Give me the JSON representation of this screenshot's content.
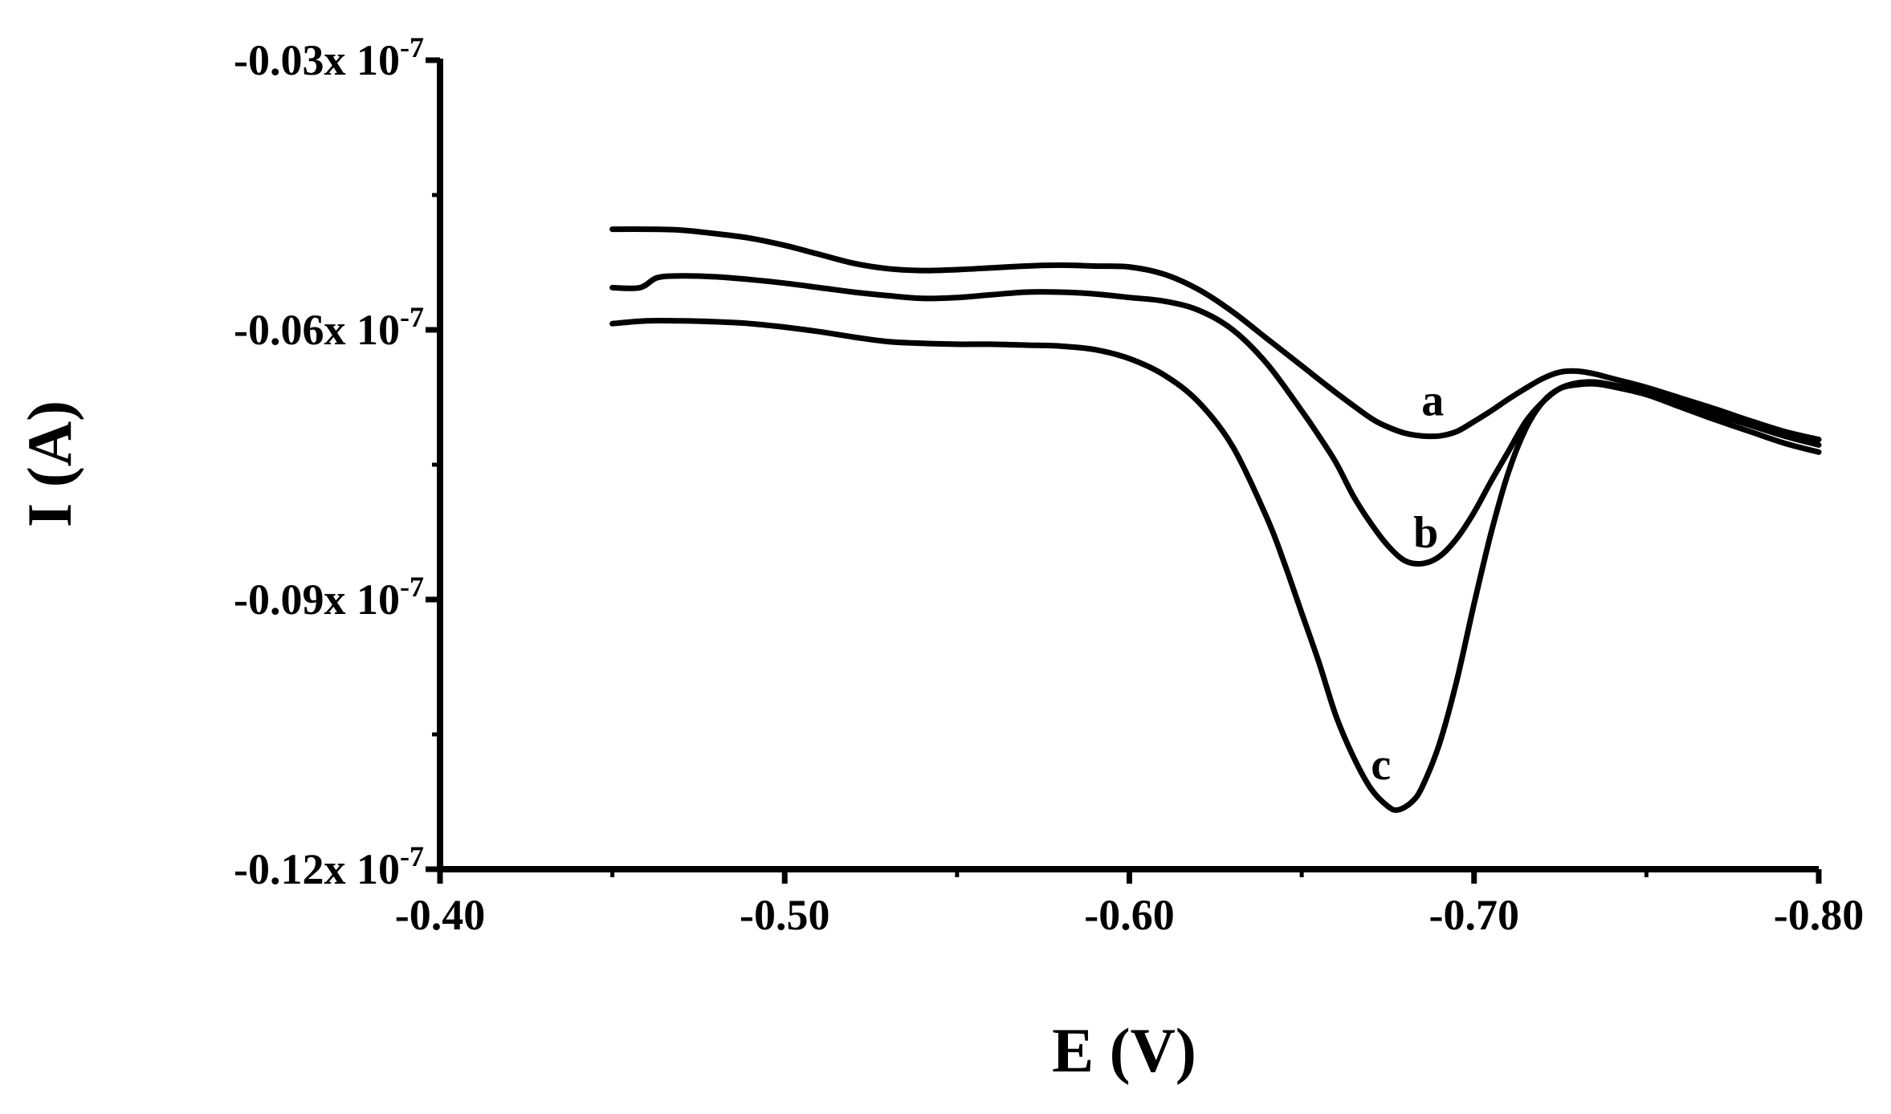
{
  "chart_data": {
    "type": "line",
    "xlabel": "E (V)",
    "ylabel": "I (A)",
    "xlim": [
      -0.4,
      -0.8
    ],
    "ylim": [
      -0.12,
      -0.03
    ],
    "y_exponent_label": "x 10",
    "y_exponent_power": "-7",
    "x_ticks": [
      {
        "value": -0.4,
        "label": "-0.40"
      },
      {
        "value": -0.5,
        "label": "-0.50"
      },
      {
        "value": -0.6,
        "label": "-0.60"
      },
      {
        "value": -0.7,
        "label": "-0.70"
      },
      {
        "value": -0.8,
        "label": "-0.80"
      }
    ],
    "y_ticks": [
      {
        "value": -0.03,
        "label": "-0.03"
      },
      {
        "value": -0.06,
        "label": "-0.06"
      },
      {
        "value": -0.09,
        "label": "-0.09"
      },
      {
        "value": -0.12,
        "label": "-0.12"
      }
    ],
    "grid": false,
    "legend": "none",
    "series": [
      {
        "name": "a",
        "color": "#000000",
        "label_at": {
          "x": -0.688,
          "y": -0.0695
        },
        "x": [
          -0.45,
          -0.46,
          -0.47,
          -0.48,
          -0.49,
          -0.5,
          -0.51,
          -0.52,
          -0.53,
          -0.54,
          -0.55,
          -0.56,
          -0.57,
          -0.58,
          -0.59,
          -0.6,
          -0.61,
          -0.62,
          -0.63,
          -0.64,
          -0.65,
          -0.66,
          -0.67,
          -0.675,
          -0.68,
          -0.685,
          -0.69,
          -0.695,
          -0.7,
          -0.705,
          -0.71,
          -0.715,
          -0.72,
          -0.725,
          -0.73,
          -0.735,
          -0.74,
          -0.75,
          -0.76,
          -0.77,
          -0.78,
          -0.79,
          -0.8
        ],
        "y": [
          -0.0488,
          -0.0488,
          -0.0489,
          -0.0493,
          -0.0498,
          -0.0506,
          -0.0516,
          -0.0526,
          -0.0532,
          -0.0534,
          -0.0533,
          -0.0531,
          -0.0529,
          -0.0528,
          -0.0529,
          -0.053,
          -0.0538,
          -0.0555,
          -0.058,
          -0.061,
          -0.064,
          -0.067,
          -0.0698,
          -0.0708,
          -0.0715,
          -0.0718,
          -0.0718,
          -0.0713,
          -0.0702,
          -0.069,
          -0.0677,
          -0.0665,
          -0.0654,
          -0.0647,
          -0.0646,
          -0.0649,
          -0.0654,
          -0.0664,
          -0.0676,
          -0.0688,
          -0.0701,
          -0.0713,
          -0.0722
        ]
      },
      {
        "name": "b",
        "color": "#000000",
        "label_at": {
          "x": -0.686,
          "y": -0.0842
        },
        "x": [
          -0.45,
          -0.458,
          -0.463,
          -0.47,
          -0.48,
          -0.49,
          -0.5,
          -0.51,
          -0.52,
          -0.53,
          -0.54,
          -0.55,
          -0.56,
          -0.57,
          -0.58,
          -0.59,
          -0.6,
          -0.61,
          -0.62,
          -0.63,
          -0.64,
          -0.65,
          -0.655,
          -0.66,
          -0.665,
          -0.67,
          -0.675,
          -0.68,
          -0.685,
          -0.69,
          -0.695,
          -0.7,
          -0.705,
          -0.71,
          -0.715,
          -0.72,
          -0.725,
          -0.73,
          -0.735,
          -0.74,
          -0.75,
          -0.76,
          -0.77,
          -0.78,
          -0.79,
          -0.8
        ],
        "y": [
          -0.0553,
          -0.0553,
          -0.0542,
          -0.054,
          -0.0541,
          -0.0544,
          -0.0548,
          -0.0553,
          -0.0558,
          -0.0562,
          -0.0565,
          -0.0564,
          -0.0561,
          -0.0558,
          -0.0558,
          -0.056,
          -0.0564,
          -0.0568,
          -0.0578,
          -0.06,
          -0.0638,
          -0.069,
          -0.0718,
          -0.0748,
          -0.0785,
          -0.0815,
          -0.084,
          -0.0857,
          -0.086,
          -0.0852,
          -0.0832,
          -0.0803,
          -0.0768,
          -0.0735,
          -0.0702,
          -0.068,
          -0.0665,
          -0.0659,
          -0.0658,
          -0.0661,
          -0.0669,
          -0.0682,
          -0.0694,
          -0.0706,
          -0.0718,
          -0.0728
        ]
      },
      {
        "name": "c",
        "color": "#000000",
        "label_at": {
          "x": -0.673,
          "y": -0.11
        },
        "x": [
          -0.45,
          -0.46,
          -0.47,
          -0.48,
          -0.49,
          -0.5,
          -0.51,
          -0.52,
          -0.53,
          -0.54,
          -0.55,
          -0.56,
          -0.57,
          -0.58,
          -0.59,
          -0.6,
          -0.61,
          -0.62,
          -0.63,
          -0.64,
          -0.645,
          -0.65,
          -0.655,
          -0.66,
          -0.665,
          -0.67,
          -0.675,
          -0.678,
          -0.682,
          -0.685,
          -0.69,
          -0.695,
          -0.7,
          -0.705,
          -0.71,
          -0.715,
          -0.72,
          -0.725,
          -0.73,
          -0.735,
          -0.74,
          -0.75,
          -0.76,
          -0.77,
          -0.78,
          -0.79,
          -0.8
        ],
        "y": [
          -0.0593,
          -0.059,
          -0.059,
          -0.0591,
          -0.0593,
          -0.0597,
          -0.0602,
          -0.0608,
          -0.0613,
          -0.0615,
          -0.0616,
          -0.0616,
          -0.0617,
          -0.0618,
          -0.0622,
          -0.0632,
          -0.065,
          -0.068,
          -0.073,
          -0.081,
          -0.086,
          -0.0915,
          -0.097,
          -0.103,
          -0.1075,
          -0.111,
          -0.113,
          -0.1134,
          -0.1125,
          -0.1108,
          -0.106,
          -0.099,
          -0.0905,
          -0.0825,
          -0.0758,
          -0.071,
          -0.068,
          -0.0665,
          -0.0661,
          -0.066,
          -0.0663,
          -0.0672,
          -0.0686,
          -0.07,
          -0.0713,
          -0.0726,
          -0.0736
        ]
      }
    ]
  }
}
